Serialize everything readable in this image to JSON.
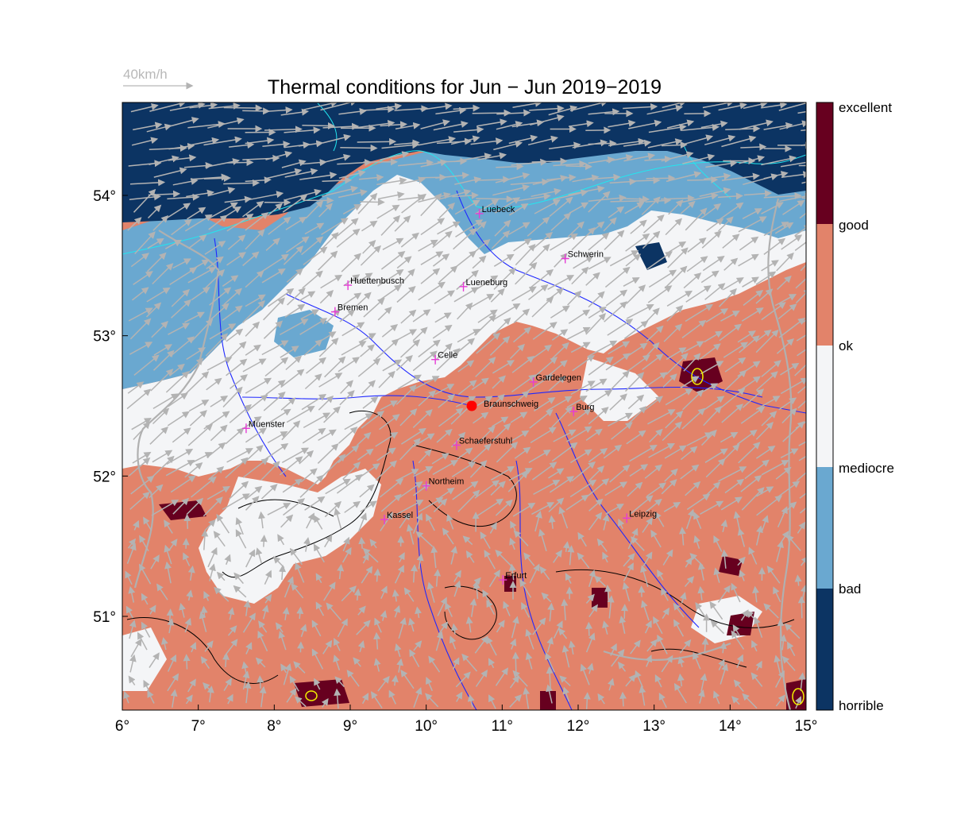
{
  "title": "Thermal conditions for Jun − Jun  2019−2019",
  "wind_legend": {
    "label": "40km/h"
  },
  "x_ticks": [
    "6°",
    "7°",
    "8°",
    "9°",
    "10°",
    "11°",
    "12°",
    "13°",
    "14°",
    "15°"
  ],
  "y_ticks": [
    "54°",
    "53°",
    "52°",
    "51°"
  ],
  "colorbar": {
    "labels": [
      "excellent",
      "good",
      "ok",
      "mediocre",
      "bad",
      "horrible"
    ],
    "colors": [
      "#67001f",
      "#e2836a",
      "#f4f5f7",
      "#6aa8d0",
      "#0c3463"
    ]
  },
  "home_marker": {
    "name": "Braunschweig",
    "color": "#ff0000"
  },
  "cities": [
    {
      "name": "Luebeck",
      "lon": 10.7,
      "lat": 53.87
    },
    {
      "name": "Schwerin",
      "lon": 11.83,
      "lat": 53.55
    },
    {
      "name": "Huettenbusch",
      "lon": 8.97,
      "lat": 53.36
    },
    {
      "name": "Lueneburg",
      "lon": 10.49,
      "lat": 53.35
    },
    {
      "name": "Bremen",
      "lon": 8.8,
      "lat": 53.17
    },
    {
      "name": "Celle",
      "lon": 10.12,
      "lat": 52.83
    },
    {
      "name": "Gardelegen",
      "lon": 11.41,
      "lat": 52.67
    },
    {
      "name": "Burg",
      "lon": 11.94,
      "lat": 52.46
    },
    {
      "name": "Muenster",
      "lon": 7.63,
      "lat": 52.34
    },
    {
      "name": "Schaeferstuhl",
      "lon": 10.4,
      "lat": 52.22
    },
    {
      "name": "Northeim",
      "lon": 10.0,
      "lat": 51.93
    },
    {
      "name": "Kassel",
      "lon": 9.45,
      "lat": 51.69
    },
    {
      "name": "Leipzig",
      "lon": 12.64,
      "lat": 51.7
    },
    {
      "name": "Erfurt",
      "lon": 11.01,
      "lat": 51.26
    }
  ],
  "colors": {
    "horrible": "#0c3463",
    "bad": "#6aa8d0",
    "mediocre": "#f4f5f7",
    "good": "#e2836a",
    "excellent": "#67001f",
    "rivers": "#1f28ff",
    "coast": "#23e6ef",
    "wind_arrows": "#b3b3b3",
    "city_marker": "#e63cd6"
  }
}
